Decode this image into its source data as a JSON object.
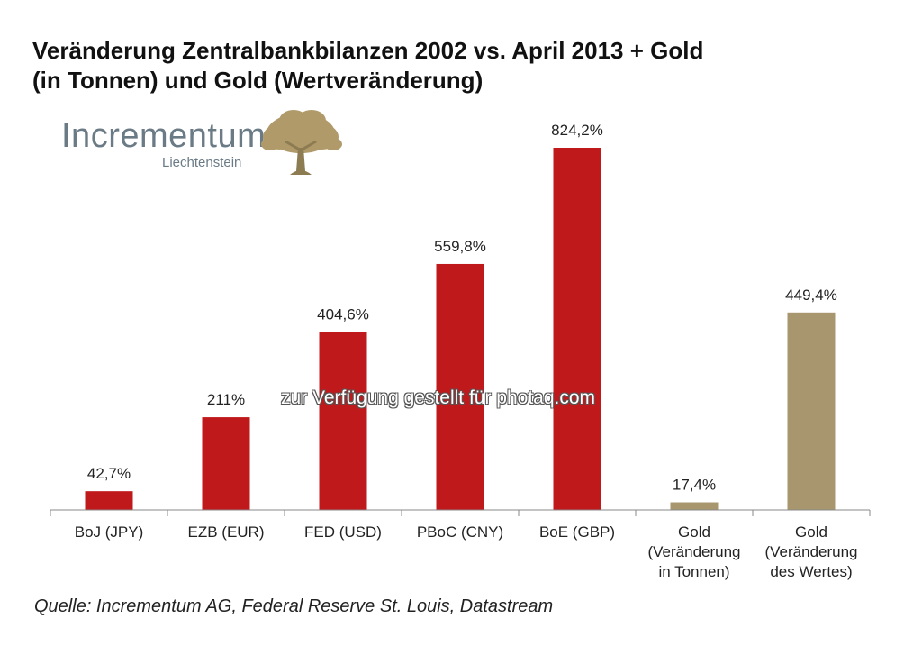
{
  "title": {
    "line1": "Veränderung Zentralbankbilanzen 2002 vs. April 2013 + Gold",
    "line2": "(in Tonnen) und Gold (Wertveränderung)"
  },
  "logo": {
    "name": "Incrementum",
    "subtitle": "Liechtenstein"
  },
  "watermark": "zur Verfügung gestellt für photaq.com",
  "source": "Quelle: Incrementum AG, Federal Reserve St. Louis, Datastream",
  "colors": {
    "red_bar": "#c0191b",
    "gold_bar": "#a8976e",
    "logo_text": "#6b7b86"
  },
  "chart_data": {
    "type": "bar",
    "title": "Veränderung Zentralbankbilanzen 2002 vs. April 2013 + Gold (in Tonnen) und Gold (Wertveränderung)",
    "xlabel": "",
    "ylabel": "",
    "ylim": [
      0,
      850
    ],
    "grid": false,
    "categories": [
      [
        "BoJ (JPY)"
      ],
      [
        "EZB (EUR)"
      ],
      [
        "FED (USD)"
      ],
      [
        "PBoC (CNY)"
      ],
      [
        "BoE (GBP)"
      ],
      [
        "Gold",
        "(Veränderung",
        "in Tonnen)"
      ],
      [
        "Gold",
        "(Veränderung",
        "des Wertes)"
      ]
    ],
    "values": [
      42.7,
      211,
      404.6,
      559.8,
      824.2,
      17.4,
      449.4
    ],
    "labels": [
      "42,7%",
      "211%",
      "404,6%",
      "559,8%",
      "824,2%",
      "17,4%",
      "449,4%"
    ],
    "bar_colors": [
      "red",
      "red",
      "red",
      "red",
      "red",
      "gold",
      "gold"
    ]
  }
}
